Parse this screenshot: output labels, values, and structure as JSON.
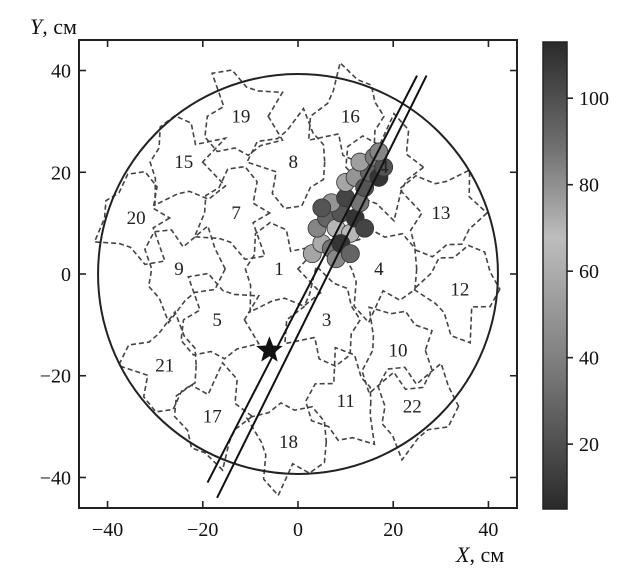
{
  "chart_data": {
    "type": "scatter",
    "xlabel_var": "X",
    "xlabel_unit": ", см",
    "ylabel_var": "Y",
    "ylabel_unit": ", см",
    "xlim": [
      -46,
      46
    ],
    "ylim": [
      -46,
      46
    ],
    "x_ticks": [
      -40,
      -20,
      0,
      20,
      40
    ],
    "y_ticks": [
      -40,
      -20,
      0,
      20,
      40
    ],
    "detector_radius": 42,
    "clusters": [
      {
        "label": "1",
        "x": -4,
        "y": 1
      },
      {
        "label": "3",
        "x": 6,
        "y": -9
      },
      {
        "label": "4",
        "x": 18,
        "y": 21
      },
      {
        "label": "4",
        "x": 17,
        "y": 1
      },
      {
        "label": "5",
        "x": -17,
        "y": -9
      },
      {
        "label": "7",
        "x": -13,
        "y": 12
      },
      {
        "label": "8",
        "x": -1,
        "y": 22
      },
      {
        "label": "9",
        "x": -25,
        "y": 1
      },
      {
        "label": "10",
        "x": 21,
        "y": -15
      },
      {
        "label": "11",
        "x": 10,
        "y": -25
      },
      {
        "label": "12",
        "x": 34,
        "y": -3
      },
      {
        "label": "13",
        "x": 30,
        "y": 12
      },
      {
        "label": "15",
        "x": -24,
        "y": 22
      },
      {
        "label": "16",
        "x": 11,
        "y": 31
      },
      {
        "label": "17",
        "x": -18,
        "y": -28
      },
      {
        "label": "18",
        "x": -2,
        "y": -33
      },
      {
        "label": "19",
        "x": -12,
        "y": 31
      },
      {
        "label": "20",
        "x": -34,
        "y": 11
      },
      {
        "label": "21",
        "x": -28,
        "y": -18
      },
      {
        "label": "22",
        "x": 24,
        "y": -26
      }
    ],
    "event_source": {
      "x": -6,
      "y": -15
    },
    "track_lines": [
      {
        "x1": -19,
        "y1": -41,
        "x2": 25,
        "y2": 39
      },
      {
        "x1": -17,
        "y1": -44,
        "x2": 27,
        "y2": 39
      }
    ],
    "hits": [
      {
        "x": 3,
        "y": 4,
        "v": 75
      },
      {
        "x": 5,
        "y": 6,
        "v": 60
      },
      {
        "x": 7,
        "y": 5,
        "v": 90
      },
      {
        "x": 4,
        "y": 9,
        "v": 85
      },
      {
        "x": 6,
        "y": 11,
        "v": 95
      },
      {
        "x": 8,
        "y": 9,
        "v": 70
      },
      {
        "x": 9,
        "y": 12,
        "v": 100
      },
      {
        "x": 7,
        "y": 14,
        "v": 80
      },
      {
        "x": 10,
        "y": 15,
        "v": 105
      },
      {
        "x": 11,
        "y": 8,
        "v": 65
      },
      {
        "x": 12,
        "y": 11,
        "v": 110
      },
      {
        "x": 13,
        "y": 14,
        "v": 90
      },
      {
        "x": 10,
        "y": 18,
        "v": 75
      },
      {
        "x": 12,
        "y": 19,
        "v": 50
      },
      {
        "x": 14,
        "y": 17,
        "v": 100
      },
      {
        "x": 15,
        "y": 20,
        "v": 95
      },
      {
        "x": 13,
        "y": 22,
        "v": 55
      },
      {
        "x": 16,
        "y": 23,
        "v": 40
      },
      {
        "x": 17,
        "y": 19,
        "v": 110
      },
      {
        "x": 18,
        "y": 21,
        "v": 100
      },
      {
        "x": 17,
        "y": 24,
        "v": 85
      },
      {
        "x": 14,
        "y": 9,
        "v": 105
      },
      {
        "x": 8,
        "y": 3,
        "v": 45
      },
      {
        "x": 5,
        "y": 13,
        "v": 100
      },
      {
        "x": 9,
        "y": 6,
        "v": 110
      },
      {
        "x": 11,
        "y": 4,
        "v": 95
      }
    ],
    "colorbar": {
      "range": [
        5,
        113
      ],
      "ticks": [
        20,
        40,
        60,
        80,
        100
      ]
    }
  }
}
